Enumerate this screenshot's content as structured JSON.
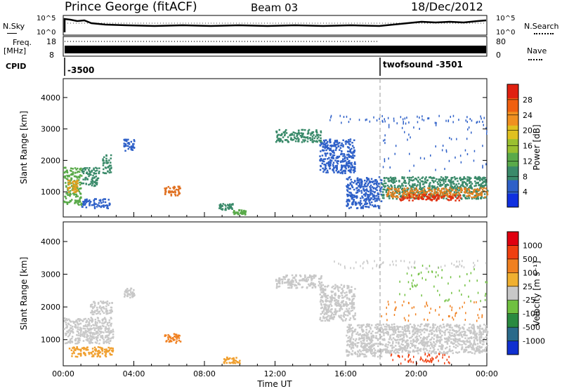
{
  "header": {
    "station": "Prince George (fitACF)",
    "beam": "Beam 03",
    "date": "18/Dec/2012"
  },
  "top_panels": {
    "nsky_label": "N.Sky",
    "nsearch_label": "N.Search",
    "noise_ticks": [
      "10^5",
      "10^0"
    ],
    "freq_label_1": "Freq.",
    "freq_label_2": "[MHz]",
    "freq_ticks": [
      "18",
      "8"
    ],
    "nave_label": "Nave",
    "nave_ticks": [
      "80",
      "0"
    ],
    "cpid_label": "CPID",
    "cpid_1": "-3500",
    "cpid_2": "twofsound -3501"
  },
  "chart_data": [
    {
      "type": "heatmap",
      "name": "power",
      "ylabel": "Slant Range [km]",
      "ylim": [
        200,
        4600
      ],
      "yticks": [
        1000,
        2000,
        3000,
        4000
      ],
      "xlim": [
        0,
        24
      ],
      "colorbar_label": "Power [dB]",
      "colorbar_ticks": [
        "4",
        "8",
        "12",
        "16",
        "20",
        "24",
        "28"
      ],
      "colorbar_colors": [
        "#1030e0",
        "#2e60c8",
        "#3a8a6a",
        "#5aaa4a",
        "#9ac030",
        "#e0c020",
        "#f09020",
        "#f06010",
        "#e02010"
      ],
      "regions": [
        {
          "x0": 0.0,
          "x1": 1.0,
          "y0": 600,
          "y1": 1800,
          "color": "#5aaa4a"
        },
        {
          "x0": 0.2,
          "x1": 0.8,
          "y0": 1000,
          "y1": 1400,
          "color": "#e0a020"
        },
        {
          "x0": 1.0,
          "x1": 2.0,
          "y0": 1200,
          "y1": 1800,
          "color": "#3a8a6a"
        },
        {
          "x0": 1.0,
          "x1": 2.6,
          "y0": 500,
          "y1": 800,
          "color": "#2e60c8"
        },
        {
          "x0": 2.2,
          "x1": 2.7,
          "y0": 1600,
          "y1": 2200,
          "color": "#3a8a6a"
        },
        {
          "x0": 3.4,
          "x1": 4.0,
          "y0": 2300,
          "y1": 2700,
          "color": "#2e60c8"
        },
        {
          "x0": 5.7,
          "x1": 6.6,
          "y0": 900,
          "y1": 1200,
          "color": "#e07020"
        },
        {
          "x0": 8.8,
          "x1": 9.6,
          "y0": 450,
          "y1": 650,
          "color": "#3a8a6a"
        },
        {
          "x0": 9.6,
          "x1": 10.3,
          "y0": 300,
          "y1": 450,
          "color": "#5aaa4a"
        },
        {
          "x0": 12.0,
          "x1": 14.6,
          "y0": 2600,
          "y1": 3000,
          "color": "#3a8a6a"
        },
        {
          "x0": 14.5,
          "x1": 16.5,
          "y0": 1600,
          "y1": 2700,
          "color": "#2e60c8"
        },
        {
          "x0": 16.0,
          "x1": 18.0,
          "y0": 500,
          "y1": 1500,
          "color": "#2e60c8"
        },
        {
          "x0": 18.0,
          "x1": 24.0,
          "y0": 800,
          "y1": 1500,
          "color": "#3a8a6a"
        },
        {
          "x0": 18.3,
          "x1": 24.0,
          "y0": 850,
          "y1": 1150,
          "color": "#e08020"
        },
        {
          "x0": 19.0,
          "x1": 22.5,
          "y0": 750,
          "y1": 950,
          "color": "#e03010"
        },
        {
          "x0": 18.0,
          "x1": 24.0,
          "y0": 1700,
          "y1": 3300,
          "color": "#2e60c8",
          "sparse": true
        },
        {
          "x0": 15.0,
          "x1": 24.0,
          "y0": 3200,
          "y1": 3450,
          "color": "#2e60c8",
          "sparse": true
        }
      ]
    },
    {
      "type": "heatmap",
      "name": "velocity",
      "ylabel": "Slant Range [km]",
      "ylim": [
        200,
        4600
      ],
      "yticks": [
        1000,
        2000,
        3000,
        4000
      ],
      "xlim": [
        0,
        24
      ],
      "xticks": [
        "00:00",
        "04:00",
        "08:00",
        "12:00",
        "16:00",
        "20:00",
        "00:00"
      ],
      "xlabel": "Time UT",
      "colorbar_label": "Velocity [m s⁻¹]",
      "colorbar_ticks": [
        "1000",
        "500",
        "100",
        "25",
        "-25",
        "-100",
        "-500",
        "-1000"
      ],
      "colorbar_colors": [
        "#1030d0",
        "#2a6a8a",
        "#2a8a40",
        "#70c040",
        "#c8c8c8",
        "#f0b030",
        "#f08020",
        "#f04010",
        "#e00010"
      ],
      "regions": [
        {
          "x0": 0.0,
          "x1": 2.8,
          "y0": 900,
          "y1": 1700,
          "color": "#c8c8c8"
        },
        {
          "x0": 0.3,
          "x1": 2.8,
          "y0": 500,
          "y1": 800,
          "color": "#f0a030"
        },
        {
          "x0": 1.5,
          "x1": 2.8,
          "y0": 1800,
          "y1": 2200,
          "color": "#c8c8c8"
        },
        {
          "x0": 3.4,
          "x1": 4.0,
          "y0": 2300,
          "y1": 2600,
          "color": "#c8c8c8"
        },
        {
          "x0": 5.7,
          "x1": 6.6,
          "y0": 900,
          "y1": 1200,
          "color": "#f08020"
        },
        {
          "x0": 9.0,
          "x1": 10.0,
          "y0": 300,
          "y1": 500,
          "color": "#f0a030"
        },
        {
          "x0": 12.0,
          "x1": 14.6,
          "y0": 2600,
          "y1": 3000,
          "color": "#c8c8c8"
        },
        {
          "x0": 14.5,
          "x1": 16.5,
          "y0": 1600,
          "y1": 2700,
          "color": "#c8c8c8"
        },
        {
          "x0": 16.0,
          "x1": 18.0,
          "y0": 500,
          "y1": 1500,
          "color": "#c8c8c8"
        },
        {
          "x0": 18.0,
          "x1": 24.0,
          "y0": 600,
          "y1": 1500,
          "color": "#c8c8c8"
        },
        {
          "x0": 18.0,
          "x1": 24.0,
          "y0": 1600,
          "y1": 2200,
          "color": "#f08020",
          "sparse": true
        },
        {
          "x0": 19.0,
          "x1": 24.0,
          "y0": 2200,
          "y1": 3300,
          "color": "#70c040",
          "sparse": true
        },
        {
          "x0": 15.0,
          "x1": 24.0,
          "y0": 3200,
          "y1": 3450,
          "color": "#c8c8c8",
          "sparse": true
        },
        {
          "x0": 18.5,
          "x1": 22.0,
          "y0": 300,
          "y1": 600,
          "color": "#f04010",
          "sparse": true
        }
      ]
    }
  ]
}
